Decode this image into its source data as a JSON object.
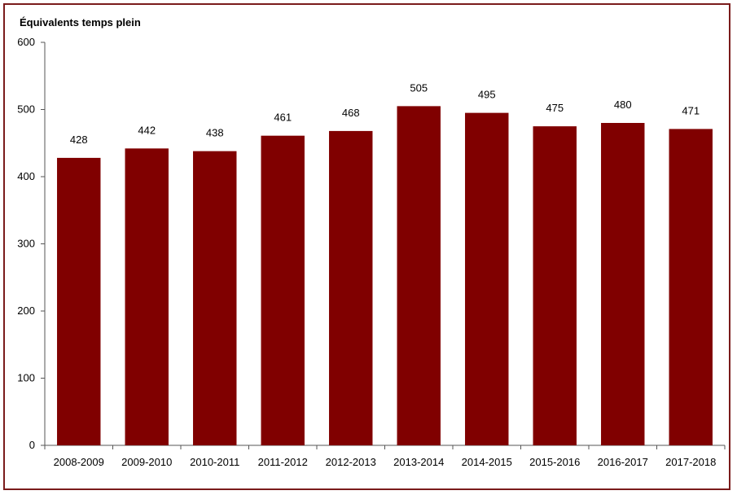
{
  "chart_data": {
    "type": "bar",
    "title": "",
    "xlabel": "",
    "ylabel": "Équivalents temps plein",
    "categories": [
      "2008-2009",
      "2009-2010",
      "2010-2011",
      "2011-2012",
      "2012-2013",
      "2013-2014",
      "2014-2015",
      "2015-2016",
      "2016-2017",
      "2017-2018"
    ],
    "values": [
      428,
      442,
      438,
      461,
      468,
      505,
      495,
      475,
      480,
      471
    ],
    "ylim": [
      0,
      600
    ],
    "yticks": [
      0,
      100,
      200,
      300,
      400,
      500,
      600
    ],
    "grid": false,
    "legend": "none",
    "bar_color": "#800000",
    "frame_color": "#7a1b1b"
  }
}
